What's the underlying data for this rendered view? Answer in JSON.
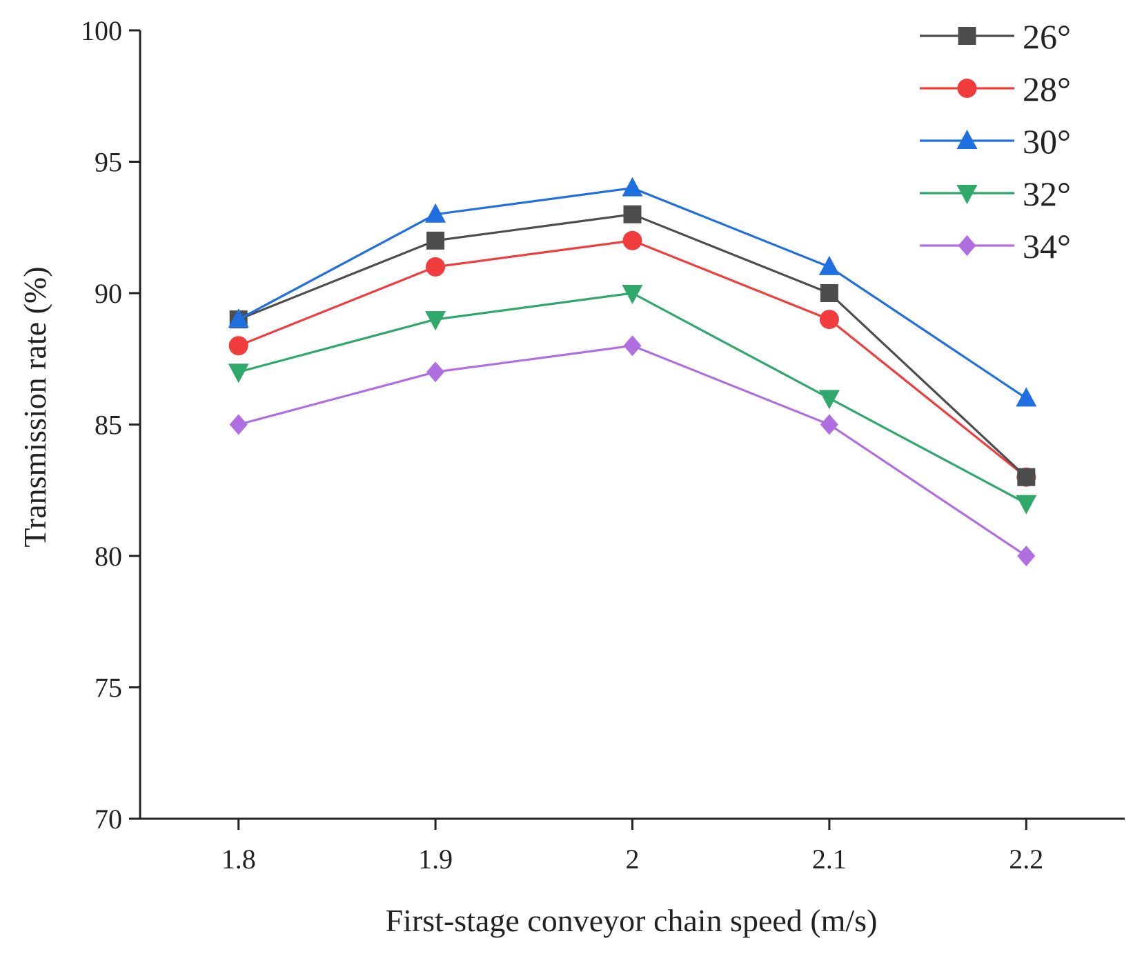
{
  "chart_data": {
    "type": "line",
    "title": "",
    "xlabel": "First-stage conveyor chain speed (m/s)",
    "ylabel": "Transmission rate (%)",
    "x": [
      1.8,
      1.9,
      2.0,
      2.1,
      2.2
    ],
    "x_tick_labels": [
      "1.8",
      "1.9",
      "2",
      "2.1",
      "2.2"
    ],
    "xlim": [
      1.75,
      2.25
    ],
    "ylim": [
      70,
      100
    ],
    "y_ticks": [
      70,
      75,
      80,
      85,
      90,
      95,
      100
    ],
    "y_tick_labels": [
      "70",
      "75",
      "80",
      "85",
      "90",
      "95",
      "100"
    ],
    "grid": false,
    "legend_position": "top-right",
    "series": [
      {
        "name": "26°",
        "values": [
          89,
          92,
          93,
          90,
          83
        ],
        "color": "#4d4d4d",
        "marker": "square"
      },
      {
        "name": "28°",
        "values": [
          88,
          91,
          92,
          89,
          83
        ],
        "color": "#f03c3c",
        "marker": "circle"
      },
      {
        "name": "30°",
        "values": [
          89,
          93,
          94,
          91,
          86
        ],
        "color": "#1f6fe0",
        "marker": "triangle-up"
      },
      {
        "name": "32°",
        "values": [
          87,
          89,
          90,
          86,
          82
        ],
        "color": "#2fa86a",
        "marker": "triangle-down"
      },
      {
        "name": "34°",
        "values": [
          85,
          87,
          88,
          85,
          80
        ],
        "color": "#b06fe0",
        "marker": "diamond"
      }
    ]
  }
}
